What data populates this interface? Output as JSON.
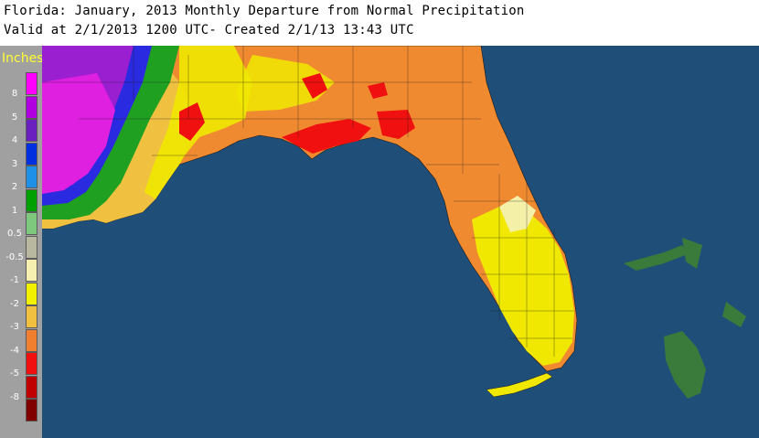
{
  "header": {
    "line1": "Florida: January, 2013 Monthly Departure from Normal Precipitation",
    "line2": "Valid at 2/1/2013 1200 UTC- Created 2/1/13 13:43 UTC"
  },
  "legend": {
    "title": "Inches",
    "swatches": [
      {
        "label": "8",
        "color": "#ff00ff"
      },
      {
        "label": "5",
        "color": "#b000e0"
      },
      {
        "label": "4",
        "color": "#6a1fbf"
      },
      {
        "label": "3",
        "color": "#0030e0"
      },
      {
        "label": "2",
        "color": "#1e90e8"
      },
      {
        "label": "1",
        "color": "#00a000"
      },
      {
        "label": "0.5",
        "color": "#7ec87e"
      },
      {
        "label": "-0.5",
        "color": "#b8b8a0"
      },
      {
        "label": "-1",
        "color": "#f5f0b0"
      },
      {
        "label": "-2",
        "color": "#f0f000"
      },
      {
        "label": "-3",
        "color": "#f0c040"
      },
      {
        "label": "-4",
        "color": "#f08030"
      },
      {
        "label": "-5",
        "color": "#f01010"
      },
      {
        "label": "-8",
        "color": "#c00000"
      },
      {
        "label": "",
        "color": "#800000"
      }
    ]
  },
  "map": {
    "water_color": "#1f4e79",
    "land_colors": {
      "dry_orange": "#f08a30",
      "light_orange": "#f0a850",
      "yellow": "#f0e800",
      "pale_yellow": "#f5f0a8",
      "red": "#f01010",
      "wet_green": "#20a020",
      "wet_blue": "#2a2ae0",
      "wet_purple": "#9a1fd0",
      "wet_magenta": "#e020e0",
      "bahamas_green": "#3a7a3a"
    }
  }
}
